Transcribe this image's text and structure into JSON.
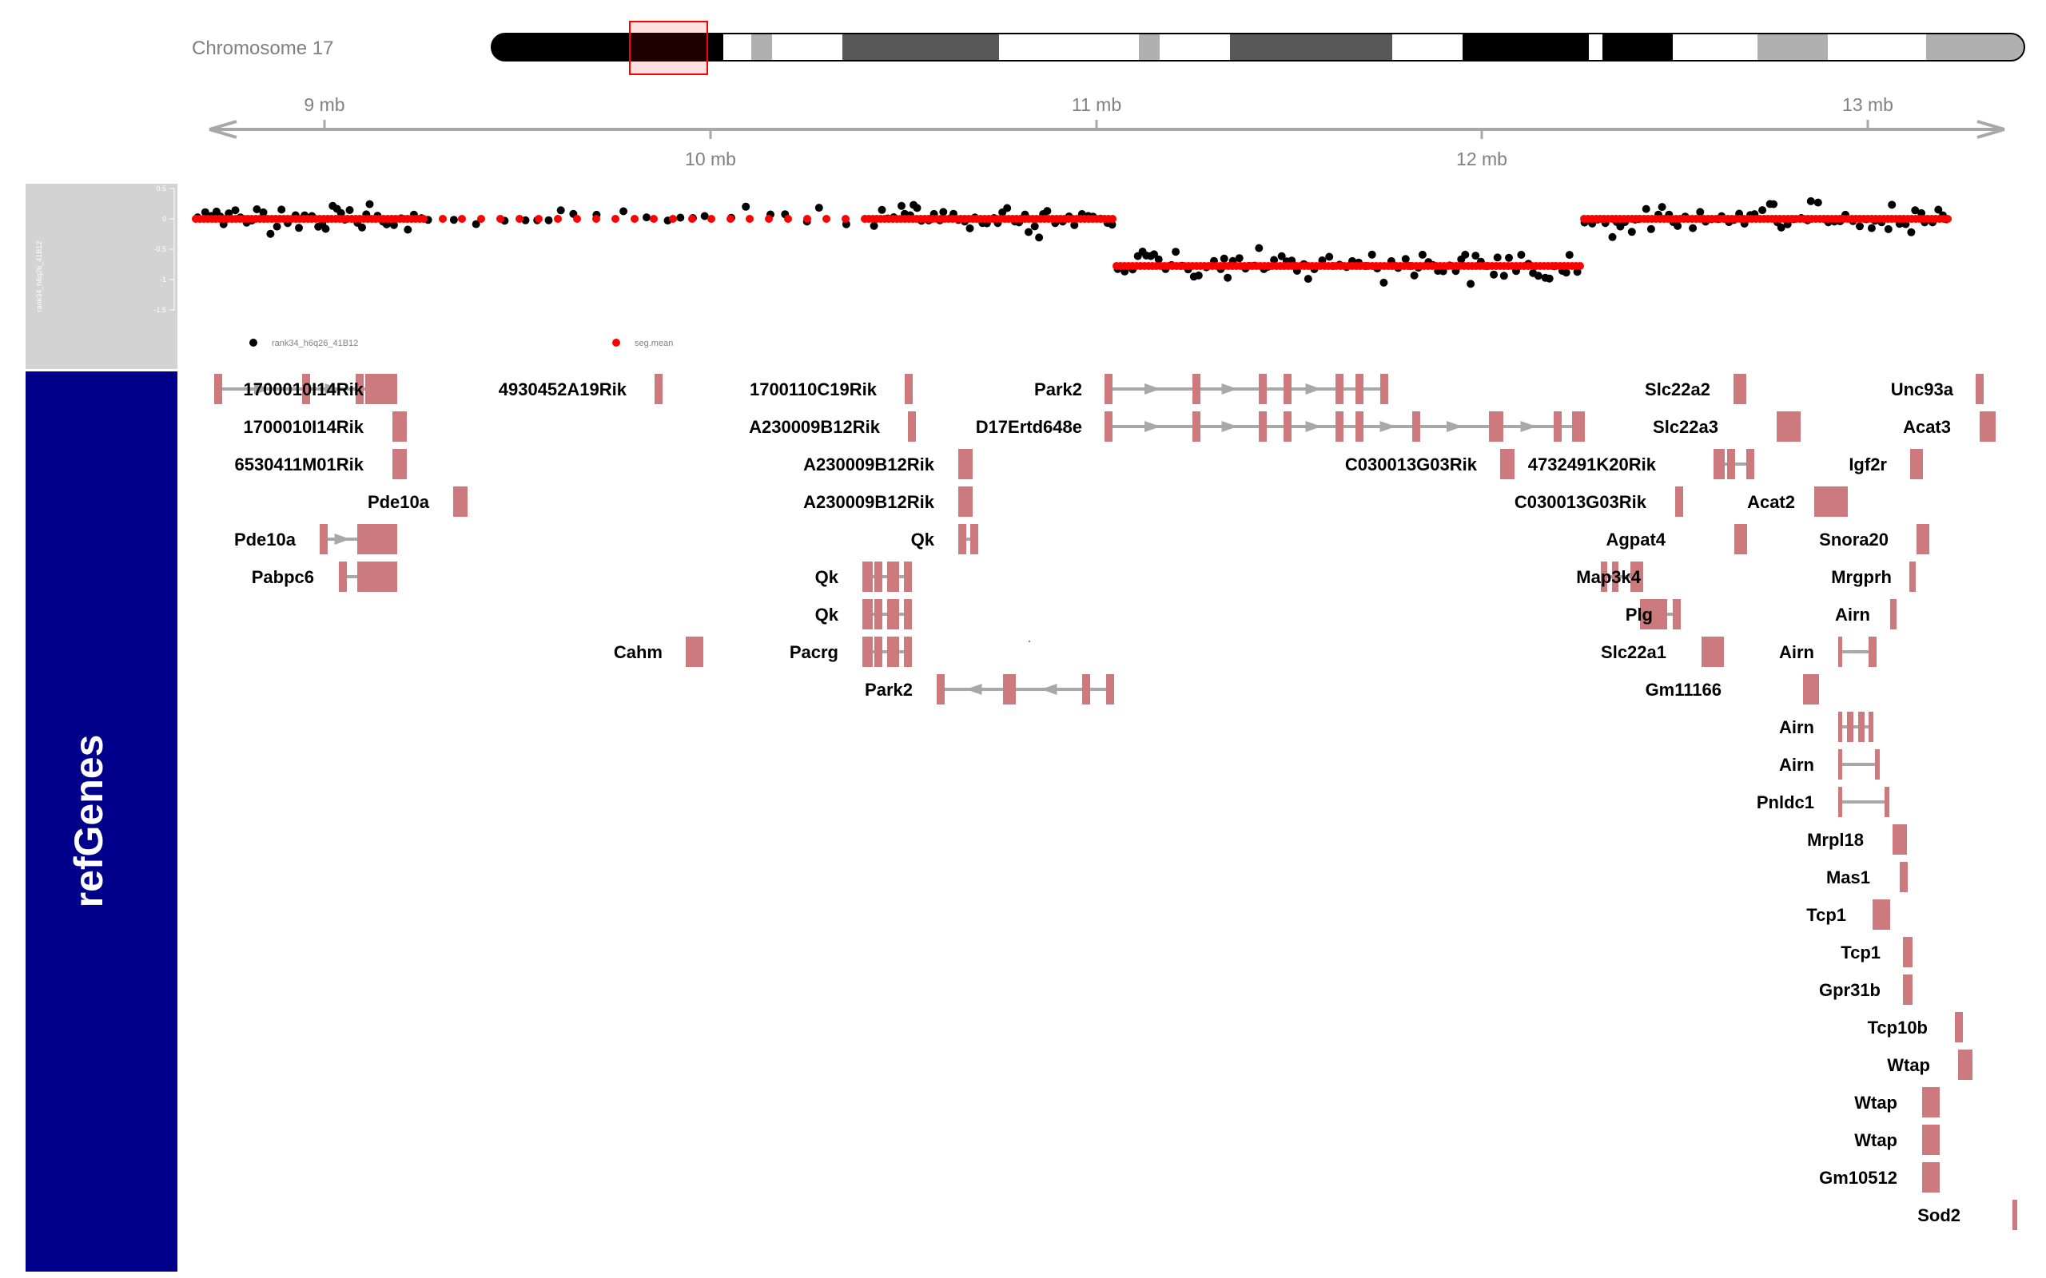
{
  "ideogram": {
    "label": "Chromosome 17"
  },
  "axis": {
    "top_ticks": [
      "9 mb",
      "11 mb",
      "13 mb"
    ],
    "bottom_ticks": [
      "10 mb",
      "12 mb"
    ]
  },
  "data_track": {
    "axis_title": "rank34_h6q26_41B12",
    "y_ticks": [
      "0.5",
      "0",
      "-0.5",
      "-1",
      "-1.5"
    ],
    "legend": [
      {
        "label": "rank34_h6q26_41B12",
        "color": "#000000"
      },
      {
        "label": "seg.mean",
        "color": "#ff0000"
      }
    ]
  },
  "gene_track": {
    "title": "refGenes",
    "panel_color": "#00008b",
    "exon_color": "#cd7a7f",
    "intron_color": "#a8a8a8"
  },
  "genes": [
    {
      "name": "1700010I14Rik"
    },
    {
      "name": "1700010I14Rik"
    },
    {
      "name": "6530411M01Rik"
    },
    {
      "name": "Pde10a"
    },
    {
      "name": "Pde10a"
    },
    {
      "name": "Pabpc6"
    },
    {
      "name": "4930452A19Rik"
    },
    {
      "name": "Cahm"
    },
    {
      "name": "1700110C19Rik"
    },
    {
      "name": "A230009B12Rik"
    },
    {
      "name": "A230009B12Rik"
    },
    {
      "name": "A230009B12Rik"
    },
    {
      "name": "Qk"
    },
    {
      "name": "Qk"
    },
    {
      "name": "Qk"
    },
    {
      "name": "Pacrg"
    },
    {
      "name": "Park2"
    },
    {
      "name": "Park2"
    },
    {
      "name": "D17Ertd648e"
    },
    {
      "name": "C030013G03Rik"
    },
    {
      "name": "Slc22a2"
    },
    {
      "name": "Slc22a3"
    },
    {
      "name": "4732491K20Rik"
    },
    {
      "name": "C030013G03Rik"
    },
    {
      "name": "Agpat4"
    },
    {
      "name": "Map3k4"
    },
    {
      "name": "Plg"
    },
    {
      "name": "Slc22a1"
    },
    {
      "name": "Gm11166"
    },
    {
      "name": "Unc93a"
    },
    {
      "name": "Acat3"
    },
    {
      "name": "Igf2r"
    },
    {
      "name": "Acat2"
    },
    {
      "name": "Snora20"
    },
    {
      "name": "Mrgprh"
    },
    {
      "name": "Airn"
    },
    {
      "name": "Airn"
    },
    {
      "name": "Airn"
    },
    {
      "name": "Airn"
    },
    {
      "name": "Pnldc1"
    },
    {
      "name": "Mrpl18"
    },
    {
      "name": "Mas1"
    },
    {
      "name": "Tcp1"
    },
    {
      "name": "Tcp1"
    },
    {
      "name": "Gpr31b"
    },
    {
      "name": "Tcp10b"
    },
    {
      "name": "Wtap"
    },
    {
      "name": "Wtap"
    },
    {
      "name": "Wtap"
    },
    {
      "name": "Gm10512"
    },
    {
      "name": "Sod2"
    }
  ]
}
